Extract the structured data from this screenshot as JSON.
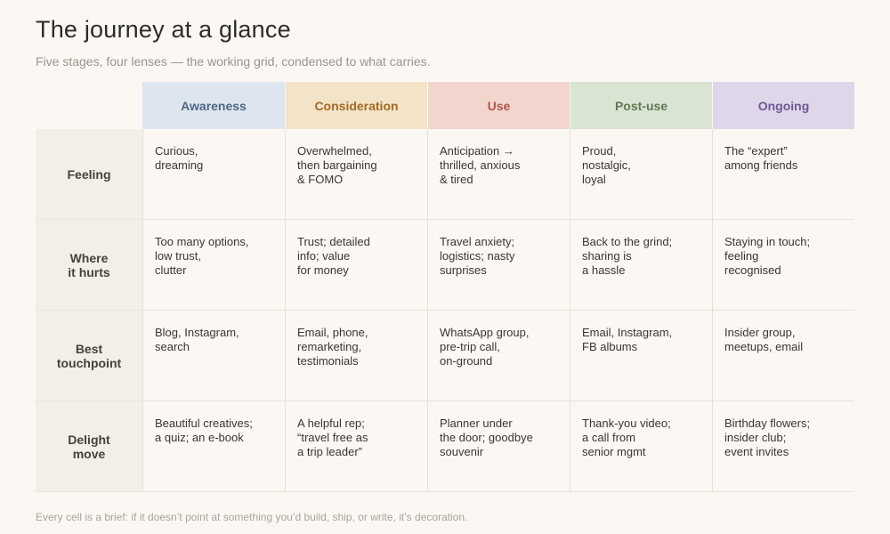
{
  "title": "The journey at a glance",
  "subtitle": "Five stages, four lenses — the working grid, condensed to what carries.",
  "stages": [
    {
      "label": "Awareness",
      "bg": "#dde6ef",
      "color": "#4f6785"
    },
    {
      "label": "Consideration",
      "bg": "#f3e3c7",
      "color": "#a26a25"
    },
    {
      "label": "Use",
      "bg": "#f2d5cd",
      "color": "#b1554a"
    },
    {
      "label": "Post-use",
      "bg": "#d9e4d2",
      "color": "#5e7a54"
    },
    {
      "label": "Ongoing",
      "bg": "#e0d6ea",
      "color": "#6e5894"
    }
  ],
  "lenses": [
    {
      "label": "Feeling",
      "cells": [
        "Curious,\ndreaming",
        "Overwhelmed,\nthen bargaining\n& FOMO",
        "Anticipation →\nthrilled, anxious\n& tired",
        "Proud,\nnostalgic,\nloyal",
        "The “expert”\namong friends"
      ]
    },
    {
      "label": "Where\nit hurts",
      "cells": [
        "Too many options,\nlow trust,\nclutter",
        "Trust; detailed\ninfo; value\nfor money",
        "Travel anxiety;\nlogistics; nasty\nsurprises",
        "Back to the grind;\nsharing is\na hassle",
        "Staying in touch;\nfeeling\nrecognised"
      ]
    },
    {
      "label": "Best\ntouchpoint",
      "cells": [
        "Blog, Instagram,\nsearch",
        "Email, phone,\nremarketing,\ntestimonials",
        "WhatsApp group,\npre-trip call,\non-ground",
        "Email, Instagram,\nFB albums",
        "Insider group,\nmeetups, email"
      ]
    },
    {
      "label": "Delight\nmove",
      "cells": [
        "Beautiful creatives;\na quiz; an e-book",
        "A helpful rep;\n“travel free as\na trip leader”",
        "Planner under\nthe door; goodbye\nsouvenir",
        "Thank-you video;\na call from\nsenior mgmt",
        "Birthday flowers;\ninsider club;\nevent invites"
      ]
    }
  ],
  "footer": "Every cell is a brief: if it doesn’t point at something you’d build, ship, or write, it’s decoration."
}
